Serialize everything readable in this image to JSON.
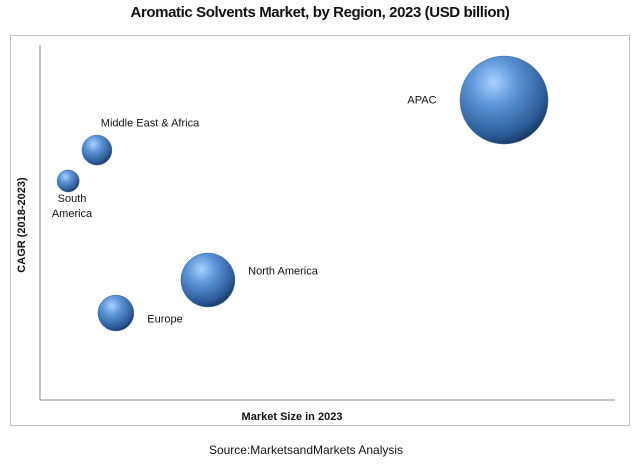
{
  "chart_data": {
    "type": "bubble",
    "title": "Aromatic Solvents Market, by Region, 2023 (USD billion)",
    "x_label": "Market Size in 2023",
    "y_label": "CAGR (2018-2023)",
    "source": "Source:MarketsandMarkets Analysis",
    "categories": [
      "APAC",
      "Middle East & Africa",
      "South America",
      "North America",
      "Europe"
    ],
    "x": [
      80.7,
      9.9,
      4.9,
      29.2,
      13.2
    ],
    "y": [
      84.5,
      70.4,
      61.7,
      33.8,
      24.5
    ],
    "sizes": [
      100,
      11.6,
      6.3,
      37.7,
      16.7
    ],
    "xlim": [
      0,
      100
    ],
    "ylim": [
      0,
      100
    ],
    "color": "#3a6fb0",
    "title_color": "#1f6db8"
  }
}
